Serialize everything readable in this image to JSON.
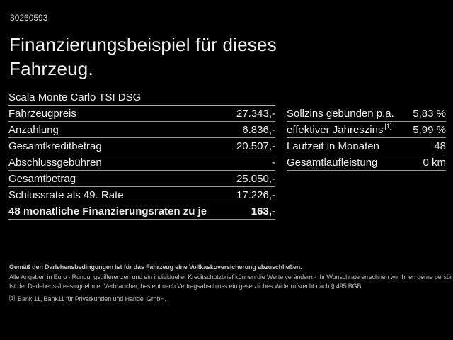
{
  "header": {
    "id_number": "30260593",
    "title_line1": "Finanzierungsbeispiel für dieses",
    "title_line2": "Fahrzeug."
  },
  "vehicle": {
    "model": "Scala Monte Carlo TSI DSG"
  },
  "finance_table": {
    "rows": [
      {
        "label": "Fahrzeugpreis",
        "value": "27.343,-",
        "bold": false
      },
      {
        "label": "Anzahlung",
        "value": "6.836,-",
        "bold": false
      },
      {
        "label": "Gesamtkreditbetrag",
        "value": "20.507,-",
        "bold": false
      },
      {
        "label": "Abschlussgebühren",
        "value": "-",
        "bold": false
      },
      {
        "label": "Gesamtbetrag",
        "value": "25.050,-",
        "bold": false
      },
      {
        "label": "Schlussrate als 49. Rate",
        "value": "17.226,-",
        "bold": false
      },
      {
        "label": "48 monatliche Finanzierungsraten zu je",
        "value": "163,-",
        "bold": true
      }
    ]
  },
  "conditions_table": {
    "rows": [
      {
        "label": "Sollzins gebunden p.a.",
        "sup": "",
        "value": "5,83 %"
      },
      {
        "label": "effektiver Jahreszins",
        "sup": "[1]",
        "value": "5,99 %"
      },
      {
        "label": "Laufzeit in Monaten",
        "sup": "",
        "value": "48"
      },
      {
        "label": "Gesamtlaufleistung",
        "sup": "",
        "value": "0 km"
      }
    ]
  },
  "fine_print": {
    "insurance_note": "Gemäß den Darlehensbedingungen ist für das Fahrzeug eine Vollkaskoversicherung abzuschließen.",
    "euro_note": "Alle Angaben in Euro - Rundungsdifferenzen und ein individueller Kreditschutzbrief können die Werte verändern - Ihr Wunschrate errechnen wir Ihnen gerne persönlich",
    "withdrawal_note": "Ist der Darlehens-/Leasingnehmer Verbraucher, besteht nach Vertragsabschluss ein gesetzliches Widerrufsrecht nach § 495 BGB",
    "footnote_marker": "[1]",
    "footnote_text": "Bank 11, Bank11 für Privatkunden und Handel GmbH."
  },
  "colors": {
    "background": "#000000",
    "text": "#ededed",
    "divider": "#9a9a9a",
    "fine_print_text": "#bdbdbd"
  }
}
